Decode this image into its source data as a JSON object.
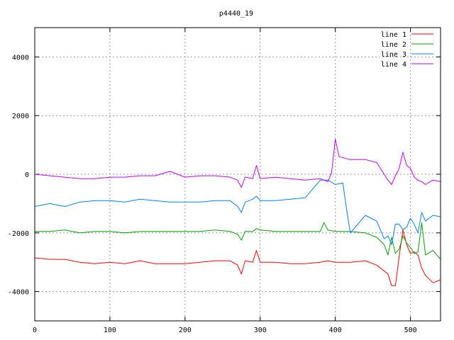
{
  "chart_data": {
    "type": "line",
    "title": "p4440_19",
    "xlabel": "",
    "ylabel": "",
    "xlim": [
      0,
      540
    ],
    "ylim": [
      -5000,
      5000
    ],
    "grid": true,
    "legend_position": "top-right",
    "x_ticks": [
      0,
      100,
      200,
      300,
      400,
      500
    ],
    "x_tick_labels": [
      "0",
      "100",
      "200",
      "300",
      "400",
      "500"
    ],
    "y_ticks": [
      -4000,
      -2000,
      0,
      2000,
      4000
    ],
    "y_tick_labels": [
      "-4000",
      "-2000",
      "0",
      "2000",
      "4000"
    ],
    "series": [
      {
        "name": "line 1",
        "color": "#ff0000",
        "x": [
          0,
          20,
          40,
          60,
          80,
          100,
          120,
          140,
          160,
          180,
          200,
          220,
          240,
          260,
          270,
          275,
          280,
          290,
          295,
          300,
          320,
          340,
          360,
          380,
          390,
          400,
          420,
          440,
          455,
          465,
          470,
          475,
          480,
          485,
          490,
          495,
          500,
          505,
          510,
          515,
          520,
          530,
          540
        ],
        "y": [
          -2850,
          -2900,
          -2900,
          -3000,
          -3050,
          -3000,
          -3050,
          -2950,
          -3050,
          -3050,
          -3050,
          -3000,
          -2950,
          -2950,
          -3100,
          -3400,
          -2950,
          -3000,
          -2600,
          -3000,
          -3000,
          -3050,
          -3050,
          -3000,
          -2950,
          -3000,
          -3000,
          -2950,
          -3100,
          -3300,
          -3400,
          -3800,
          -3800,
          -2800,
          -1900,
          -2400,
          -2700,
          -2650,
          -2750,
          -3200,
          -3450,
          -3700,
          -3600
        ]
      },
      {
        "name": "line 2",
        "color": "#00a000",
        "x": [
          0,
          20,
          40,
          60,
          80,
          100,
          120,
          140,
          160,
          180,
          200,
          220,
          240,
          260,
          270,
          275,
          280,
          290,
          295,
          300,
          320,
          340,
          360,
          380,
          385,
          390,
          400,
          420,
          440,
          455,
          465,
          470,
          475,
          480,
          485,
          490,
          495,
          500,
          505,
          510,
          515,
          520,
          530,
          540
        ],
        "y": [
          -1950,
          -1950,
          -1900,
          -2000,
          -1950,
          -1950,
          -2000,
          -1950,
          -1950,
          -1950,
          -1950,
          -1950,
          -1900,
          -1950,
          -2050,
          -2250,
          -1950,
          -1950,
          -1850,
          -1900,
          -1950,
          -1950,
          -1950,
          -1950,
          -1650,
          -1900,
          -1950,
          -1950,
          -2000,
          -2150,
          -2400,
          -2750,
          -2150,
          -2700,
          -2550,
          -2100,
          -2350,
          -2500,
          -2700,
          -2650,
          -1650,
          -2750,
          -2600,
          -2900
        ]
      },
      {
        "name": "line 3",
        "color": "#0080ff",
        "x": [
          0,
          20,
          40,
          60,
          80,
          100,
          120,
          140,
          160,
          180,
          200,
          220,
          240,
          260,
          270,
          275,
          280,
          290,
          295,
          300,
          320,
          340,
          360,
          380,
          390,
          400,
          410,
          415,
          420,
          440,
          455,
          465,
          470,
          475,
          480,
          485,
          490,
          495,
          500,
          505,
          510,
          515,
          520,
          530,
          540
        ],
        "y": [
          -1100,
          -1000,
          -1100,
          -950,
          -900,
          -900,
          -950,
          -850,
          -900,
          -950,
          -950,
          -950,
          -900,
          -900,
          -1100,
          -1300,
          -950,
          -850,
          -750,
          -900,
          -900,
          -850,
          -800,
          -200,
          -200,
          -350,
          -300,
          -1200,
          -2000,
          -1400,
          -1600,
          -2200,
          -2100,
          -2400,
          -1700,
          -1700,
          -1900,
          -1800,
          -1500,
          -1700,
          -2000,
          -1300,
          -1600,
          -1400,
          -1450
        ]
      },
      {
        "name": "line 4",
        "color": "#c000ff",
        "x": [
          0,
          20,
          40,
          60,
          80,
          100,
          120,
          140,
          160,
          180,
          200,
          220,
          240,
          260,
          270,
          275,
          280,
          290,
          295,
          300,
          320,
          340,
          360,
          380,
          390,
          395,
          400,
          405,
          420,
          440,
          455,
          465,
          470,
          475,
          480,
          485,
          490,
          495,
          500,
          505,
          510,
          515,
          520,
          530,
          540
        ],
        "y": [
          0,
          -50,
          -100,
          -150,
          -150,
          -100,
          -100,
          -50,
          -50,
          100,
          -100,
          -50,
          -50,
          -100,
          -200,
          -450,
          -100,
          -150,
          300,
          -150,
          -100,
          -150,
          -200,
          -150,
          -250,
          50,
          1200,
          600,
          500,
          500,
          400,
          0,
          -200,
          -350,
          -50,
          200,
          750,
          300,
          200,
          -100,
          -200,
          -250,
          -350,
          -200,
          -250
        ]
      }
    ]
  }
}
